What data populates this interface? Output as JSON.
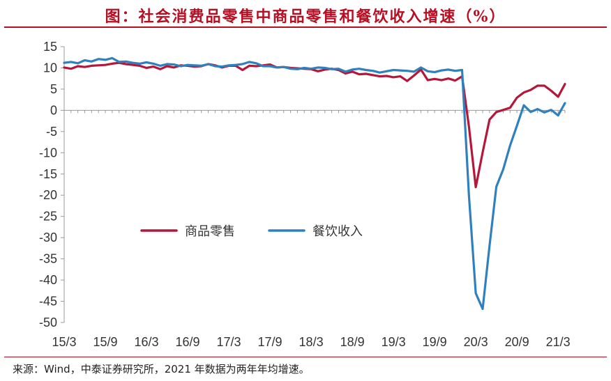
{
  "title": "图：社会消费品零售中商品零售和餐饮收入增速（%）",
  "source": "来源：Wind，中泰证券研究所，2021 年数据为两年年均增速。",
  "colors": {
    "accent": "#b80e23",
    "axis": "#999999"
  },
  "chart_data": {
    "type": "line",
    "title": "图：社会消费品零售中商品零售和餐饮收入增速（%）",
    "xlabel": "",
    "ylabel": "",
    "ylim": [
      -50,
      15
    ],
    "yticks": [
      15,
      10,
      5,
      0,
      -5,
      -10,
      -15,
      -20,
      -25,
      -30,
      -35,
      -40,
      -45,
      -50
    ],
    "x_tick_labels": [
      "15/3",
      "15/9",
      "16/3",
      "16/9",
      "17/3",
      "17/9",
      "18/3",
      "18/9",
      "19/3",
      "19/9",
      "20/3",
      "20/9",
      "21/3"
    ],
    "x_tick_month_index": [
      0,
      6,
      12,
      18,
      24,
      30,
      36,
      42,
      48,
      54,
      60,
      66,
      72
    ],
    "x_range": [
      0,
      73
    ],
    "grid": false,
    "legend_position": "center-left",
    "series": [
      {
        "name": "商品零售",
        "color": "#b5173a",
        "x": [
          0,
          1,
          2,
          3,
          4,
          5,
          6,
          7,
          8,
          9,
          10,
          11,
          12,
          13,
          14,
          15,
          16,
          17,
          18,
          19,
          20,
          21,
          22,
          23,
          24,
          25,
          26,
          27,
          28,
          29,
          30,
          31,
          32,
          33,
          34,
          35,
          36,
          37,
          38,
          39,
          40,
          41,
          42,
          43,
          44,
          45,
          46,
          47,
          48,
          49,
          50,
          51,
          52,
          53,
          54,
          55,
          56,
          57,
          58,
          59,
          60,
          61,
          62,
          63,
          64,
          65,
          66,
          67,
          68,
          69,
          70,
          71,
          72,
          73
        ],
        "values": [
          10.1,
          9.8,
          10.4,
          10.2,
          10.5,
          10.6,
          10.7,
          11.0,
          11.2,
          10.9,
          10.7,
          10.5,
          10.0,
          10.3,
          9.7,
          10.4,
          10.1,
          10.6,
          10.5,
          10.3,
          10.4,
          10.9,
          10.6,
          10.1,
          10.5,
          10.5,
          9.5,
          10.5,
          10.4,
          10.6,
          10.8,
          10.1,
          10.2,
          10.0,
          9.9,
          9.8,
          9.7,
          9.2,
          9.6,
          9.8,
          9.5,
          8.7,
          9.1,
          8.5,
          8.6,
          8.3,
          8.0,
          8.1,
          7.8,
          8.0,
          6.9,
          8.2,
          9.6,
          7.1,
          7.4,
          7.1,
          7.5,
          7.0,
          8.0,
          -3.8,
          -18.1,
          -9.9,
          -2.2,
          -0.4,
          0.1,
          0.6,
          3.0,
          4.2,
          4.8,
          5.8,
          5.8,
          4.6,
          3.2,
          6.2
        ]
      },
      {
        "name": "餐饮收入",
        "color": "#2f80bd",
        "x": [
          0,
          1,
          2,
          3,
          4,
          5,
          6,
          7,
          8,
          9,
          10,
          11,
          12,
          13,
          14,
          15,
          16,
          17,
          18,
          19,
          20,
          21,
          22,
          23,
          24,
          25,
          26,
          27,
          28,
          29,
          30,
          31,
          32,
          33,
          34,
          35,
          36,
          37,
          38,
          39,
          40,
          41,
          42,
          43,
          44,
          45,
          46,
          47,
          48,
          49,
          50,
          51,
          52,
          53,
          54,
          55,
          56,
          57,
          58,
          59,
          60,
          61,
          62,
          63,
          64,
          65,
          66,
          67,
          68,
          69,
          70,
          71,
          72,
          73
        ],
        "values": [
          11.2,
          11.4,
          11.1,
          11.8,
          11.5,
          12.1,
          11.9,
          12.3,
          11.4,
          11.5,
          11.2,
          11.0,
          11.3,
          11.0,
          10.5,
          10.9,
          10.8,
          10.4,
          10.7,
          10.6,
          10.5,
          10.9,
          10.4,
          10.3,
          10.6,
          10.7,
          10.9,
          11.4,
          11.1,
          10.4,
          10.4,
          10.1,
          10.2,
          9.8,
          9.7,
          10.0,
          9.8,
          10.1,
          10.0,
          9.7,
          9.8,
          9.1,
          9.6,
          9.8,
          9.5,
          9.3,
          8.9,
          9.2,
          9.5,
          9.4,
          9.3,
          9.1,
          10.1,
          9.2,
          9.0,
          9.4,
          9.6,
          9.3,
          9.5,
          -20.0,
          -43.1,
          -46.8,
          -32.0,
          -18.0,
          -13.9,
          -8.3,
          -3.6,
          1.2,
          -0.4,
          0.3,
          -0.5,
          0.1,
          -1.2,
          1.7
        ]
      }
    ]
  }
}
